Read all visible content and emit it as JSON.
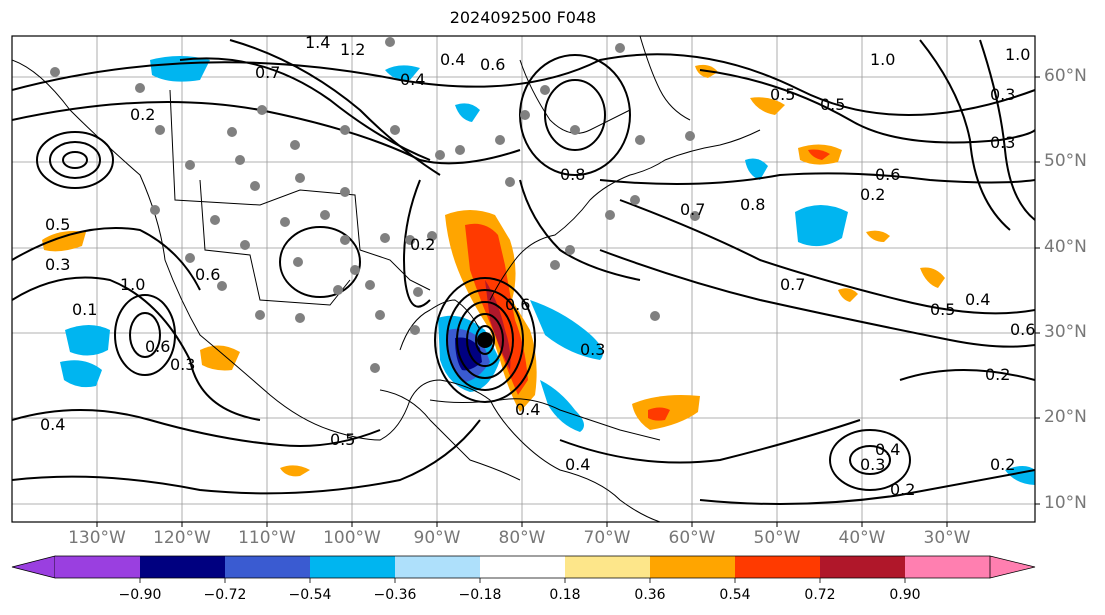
{
  "title": "2024092500 F048",
  "lon_labels": [
    "130°W",
    "120°W",
    "110°W",
    "100°W",
    "90°W",
    "80°W",
    "70°W",
    "60°W",
    "50°W",
    "40°W",
    "30°W"
  ],
  "lat_labels": [
    "60°N",
    "50°N",
    "40°N",
    "30°N",
    "20°N",
    "10°N"
  ],
  "colorbar": {
    "labels": [
      "−0.90",
      "−0.72",
      "−0.54",
      "−0.36",
      "−0.18",
      "0.18",
      "0.36",
      "0.54",
      "0.72",
      "0.90"
    ],
    "colors": [
      "#9a3fe0",
      "#000080",
      "#3a5bd1",
      "#00b5f0",
      "#aee0fb",
      "#ffffff",
      "#fde68a",
      "#ffa500",
      "#ff3a00",
      "#b0172a",
      "#ff7fb0"
    ]
  },
  "contour_labels": [
    "1.4",
    "1.2",
    "0.7",
    "0.4",
    "0.6",
    "1.0",
    "0.5",
    "0.3",
    "0.2",
    "0.8",
    "0.2",
    "0.4",
    "0.3",
    "1.0",
    "0.5",
    "0.6",
    "0.4",
    "0.8",
    "0.6",
    "0.3",
    "0.5",
    "0.1",
    "1.0",
    "0.6",
    "0.3",
    "0.4",
    "0.2",
    "0.6",
    "0.4",
    "0.5",
    "0.6",
    "0.4",
    "0.5",
    "0.3",
    "0.2",
    "0.2",
    "0.3",
    "0.4",
    "0.2",
    "0.7",
    "0.7"
  ]
}
